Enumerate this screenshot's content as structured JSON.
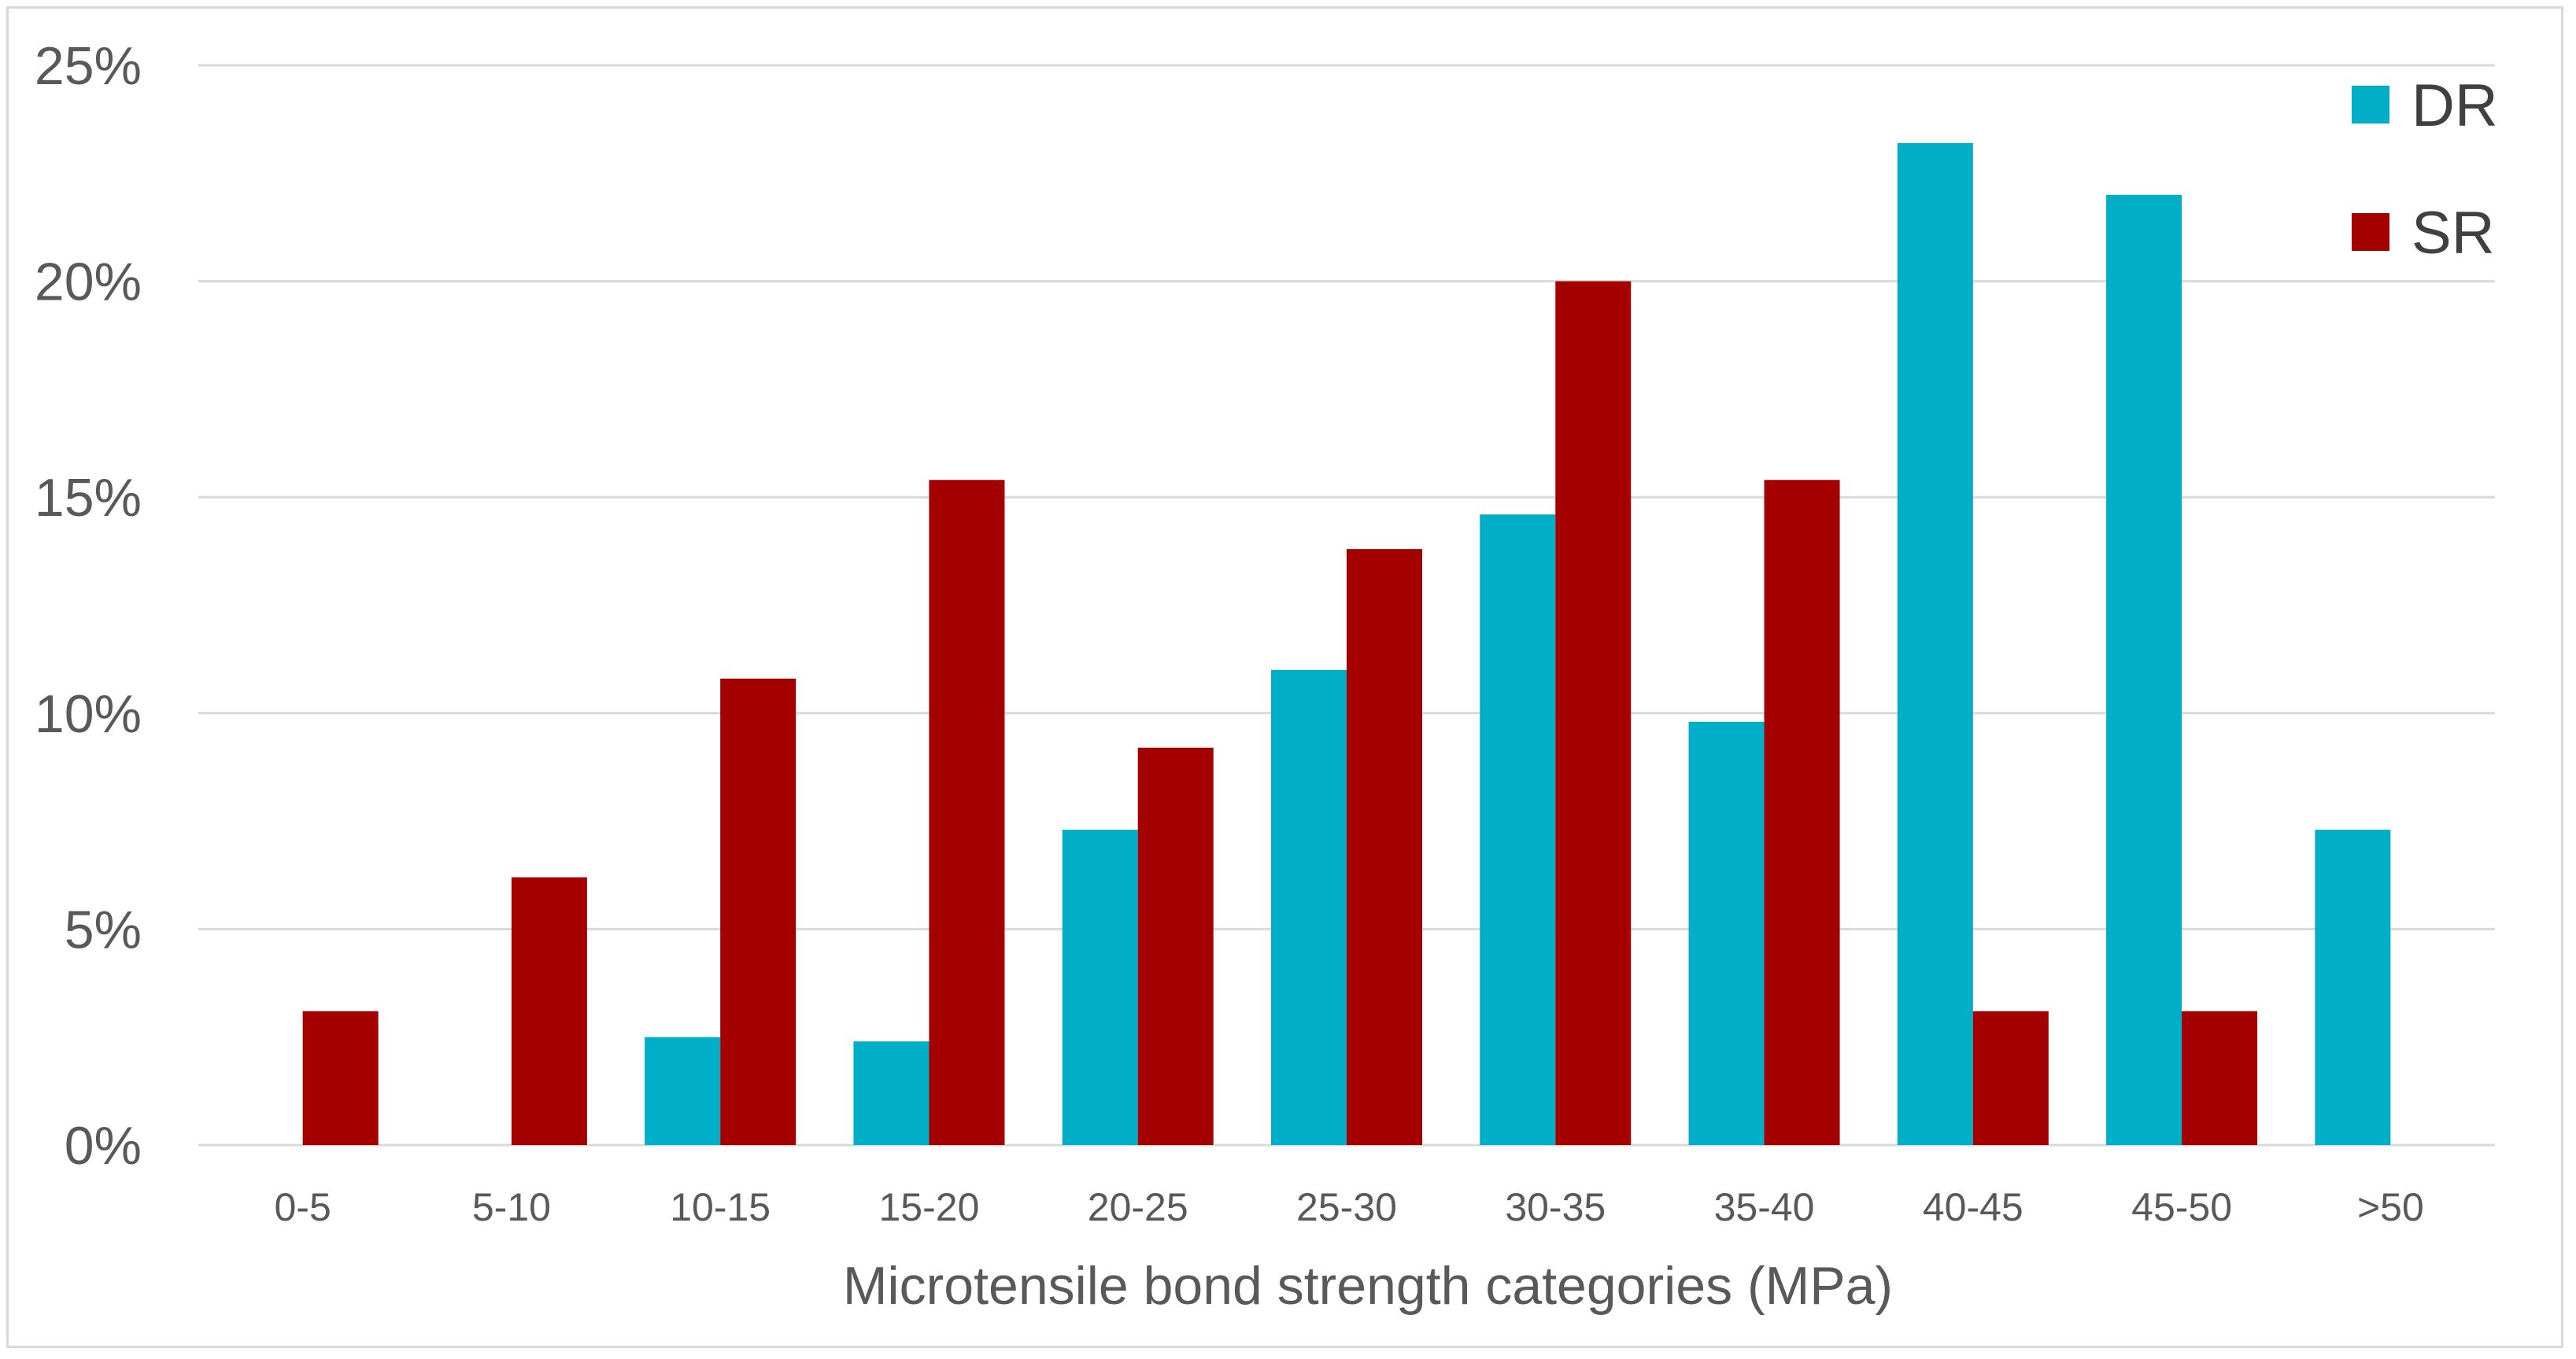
{
  "chart_data": {
    "type": "bar",
    "title": "",
    "xlabel": "Microtensile bond strength categories (MPa)",
    "ylabel": "",
    "categories": [
      "0-5",
      "5-10",
      "10-15",
      "15-20",
      "20-25",
      "25-30",
      "30-35",
      "35-40",
      "40-45",
      "45-50",
      ">50"
    ],
    "series": [
      {
        "name": "DR",
        "color": "#00AEC7",
        "values": [
          0,
          0,
          2.5,
          2.4,
          7.3,
          11.0,
          14.6,
          9.8,
          23.2,
          22.0,
          7.3
        ]
      },
      {
        "name": "SR",
        "color": "#A50000",
        "values": [
          3.1,
          6.2,
          10.8,
          15.4,
          9.2,
          13.8,
          20.0,
          15.4,
          3.1,
          3.1,
          0
        ]
      }
    ],
    "ylim": [
      0,
      25
    ],
    "yticks": [
      0,
      5,
      10,
      15,
      20,
      25
    ],
    "ytick_labels": [
      "0%",
      "5%",
      "10%",
      "15%",
      "20%",
      "25%"
    ],
    "grid": true,
    "legend_position": "top-right"
  }
}
